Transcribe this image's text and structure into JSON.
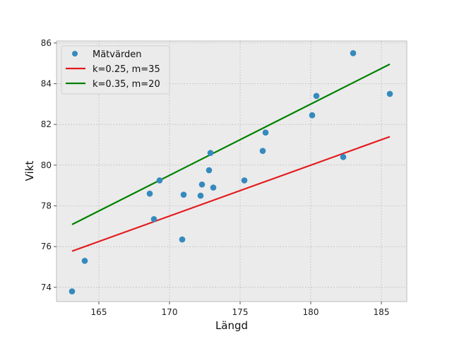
{
  "chart_data": {
    "type": "scatter",
    "xlabel": "Längd",
    "ylabel": "Vikt",
    "xlim": [
      162,
      186.8
    ],
    "ylim": [
      73.3,
      86.1
    ],
    "xticks": [
      165,
      170,
      175,
      180,
      185
    ],
    "yticks": [
      74,
      76,
      78,
      80,
      82,
      84,
      86
    ],
    "grid": true,
    "legend_position": "top-left",
    "background": "#ebebeb",
    "scatter": {
      "name": "Mätvärden",
      "color": "#348abd",
      "points": [
        {
          "x": 163.1,
          "y": 73.8
        },
        {
          "x": 164.0,
          "y": 75.3
        },
        {
          "x": 168.6,
          "y": 78.6
        },
        {
          "x": 168.9,
          "y": 77.35
        },
        {
          "x": 169.3,
          "y": 79.25
        },
        {
          "x": 170.9,
          "y": 76.35
        },
        {
          "x": 171.0,
          "y": 78.55
        },
        {
          "x": 172.2,
          "y": 78.5
        },
        {
          "x": 172.3,
          "y": 79.05
        },
        {
          "x": 172.8,
          "y": 79.75
        },
        {
          "x": 172.9,
          "y": 80.6
        },
        {
          "x": 173.1,
          "y": 78.9
        },
        {
          "x": 175.3,
          "y": 79.25
        },
        {
          "x": 176.6,
          "y": 80.7
        },
        {
          "x": 176.8,
          "y": 81.6
        },
        {
          "x": 180.1,
          "y": 82.45
        },
        {
          "x": 180.4,
          "y": 83.4
        },
        {
          "x": 182.3,
          "y": 80.4
        },
        {
          "x": 183.0,
          "y": 85.5
        },
        {
          "x": 185.6,
          "y": 83.5
        }
      ]
    },
    "lines": [
      {
        "name": "k=0.25, m=35",
        "color": "#e41a1c",
        "x": [
          163.1,
          185.6
        ],
        "y": [
          75.775,
          81.4
        ]
      },
      {
        "name": "k=0.35, m=20",
        "color": "#008000",
        "x": [
          163.1,
          185.6
        ],
        "y": [
          77.085,
          84.96
        ]
      }
    ]
  }
}
